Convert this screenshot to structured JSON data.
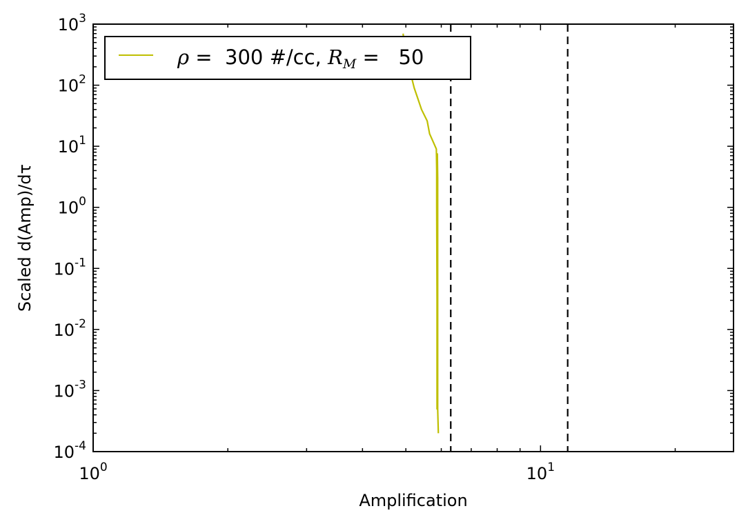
{
  "chart_data": {
    "type": "line",
    "xscale": "log",
    "yscale": "log",
    "xlim": [
      1,
      27
    ],
    "ylim": [
      0.0001,
      1000
    ],
    "xlabel": "Amplification",
    "ylabel": "Scaled d(Amp)/dτ",
    "grid": false,
    "legend_placement": "top-left",
    "x_ticks": [
      {
        "value": 1,
        "base": "10",
        "exp": "0"
      },
      {
        "value": 10,
        "base": "10",
        "exp": "1"
      }
    ],
    "y_ticks": [
      {
        "value": 1000,
        "base": "10",
        "exp": "3"
      },
      {
        "value": 100,
        "base": "10",
        "exp": "2"
      },
      {
        "value": 10,
        "base": "10",
        "exp": "1"
      },
      {
        "value": 1,
        "base": "10",
        "exp": "0"
      },
      {
        "value": 0.1,
        "base": "10",
        "exp": "-1"
      },
      {
        "value": 0.01,
        "base": "10",
        "exp": "-2"
      },
      {
        "value": 0.001,
        "base": "10",
        "exp": "-3"
      },
      {
        "value": 0.0001,
        "base": "10",
        "exp": "-4"
      }
    ],
    "series": [
      {
        "name": "ρ =  300 #/cc, R_M =   50",
        "legend_parts": {
          "rho": "ρ",
          "eq1": " =  300 #/cc, ",
          "rm_base": "R",
          "rm_sub": "M",
          "eq2": " =   50"
        },
        "color": "#bfbf00",
        "points": [
          [
            4.93,
            700
          ],
          [
            4.96,
            450
          ],
          [
            5.0,
            320
          ],
          [
            5.06,
            220
          ],
          [
            5.13,
            150
          ],
          [
            5.22,
            90
          ],
          [
            5.3,
            65
          ],
          [
            5.42,
            40
          ],
          [
            5.58,
            26
          ],
          [
            5.65,
            16
          ],
          [
            5.78,
            11
          ],
          [
            5.85,
            9
          ],
          [
            5.86,
            4
          ],
          [
            5.87,
            1
          ],
          [
            5.87,
            0.1
          ],
          [
            5.87,
            0.01
          ],
          [
            5.87,
            0.001
          ],
          [
            5.87,
            0.0005
          ],
          [
            5.89,
            0.0005
          ],
          [
            5.89,
            0.003
          ],
          [
            5.89,
            0.3
          ],
          [
            5.89,
            3
          ],
          [
            5.88,
            7.5
          ],
          [
            5.86,
            7.5
          ],
          [
            5.86,
            1
          ],
          [
            5.88,
            0.001
          ],
          [
            5.89,
            0.0005
          ],
          [
            5.91,
            0.0002
          ]
        ]
      }
    ],
    "vlines": [
      {
        "x": 6.3,
        "style": "dashed",
        "color": "#000000"
      },
      {
        "x": 11.5,
        "style": "dashed",
        "color": "#000000"
      }
    ]
  }
}
